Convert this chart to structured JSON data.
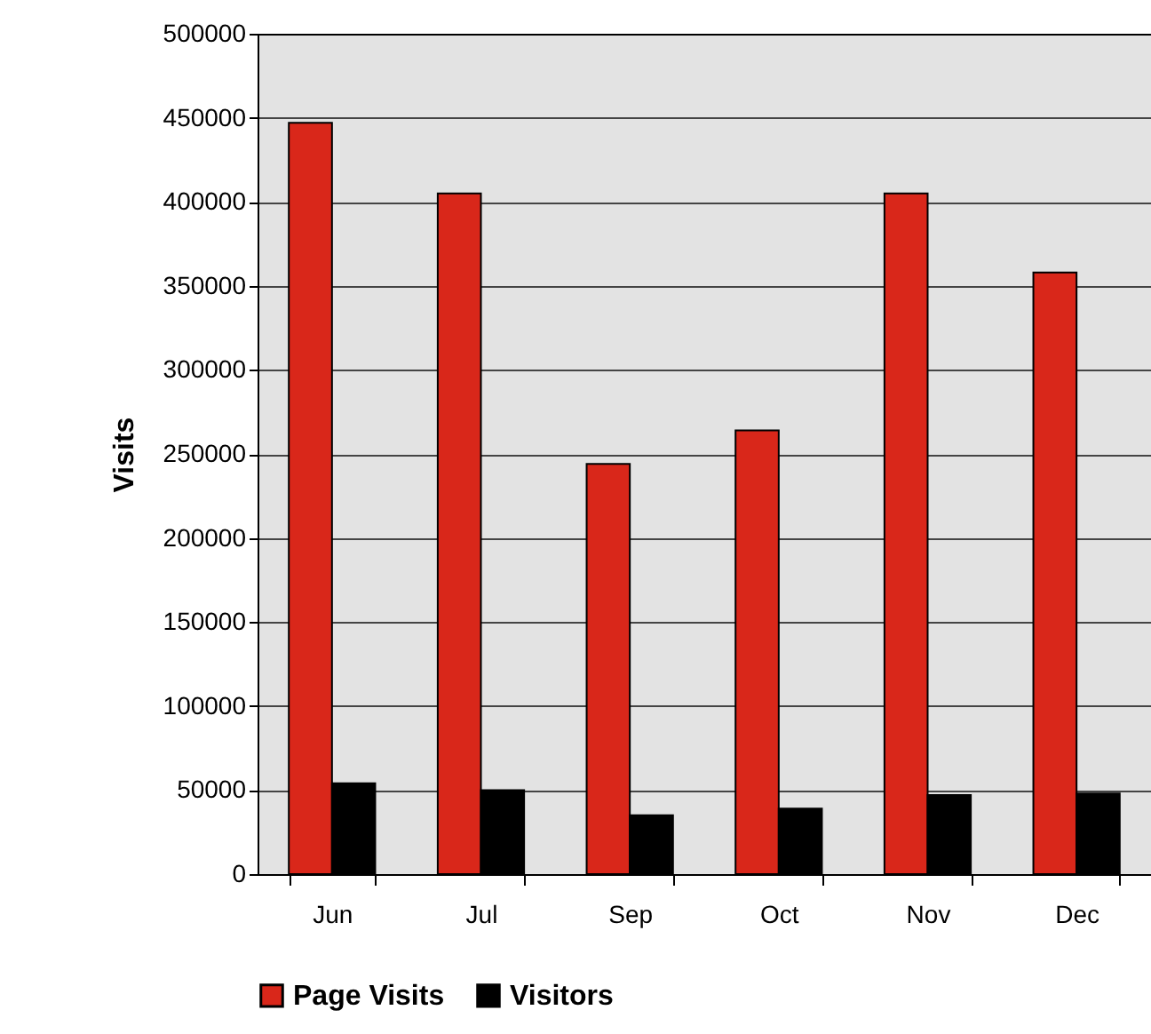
{
  "chart_data": {
    "type": "bar",
    "ylabel": "Visits",
    "categories": [
      "Jun",
      "Jul",
      "Sep",
      "Oct",
      "Nov",
      "Dec"
    ],
    "series": [
      {
        "name": "Page Visits",
        "color": "#d9271a",
        "values": [
          447000,
          405000,
          244000,
          264000,
          405000,
          358000
        ]
      },
      {
        "name": "Visitors",
        "color": "#000000",
        "values": [
          54000,
          50000,
          35000,
          39000,
          47000,
          48000
        ]
      }
    ],
    "ylim": [
      0,
      500000
    ],
    "yticks": [
      0,
      50000,
      100000,
      150000,
      200000,
      250000,
      300000,
      350000,
      400000,
      450000,
      500000
    ],
    "grid": "y",
    "legend": "bottom"
  }
}
